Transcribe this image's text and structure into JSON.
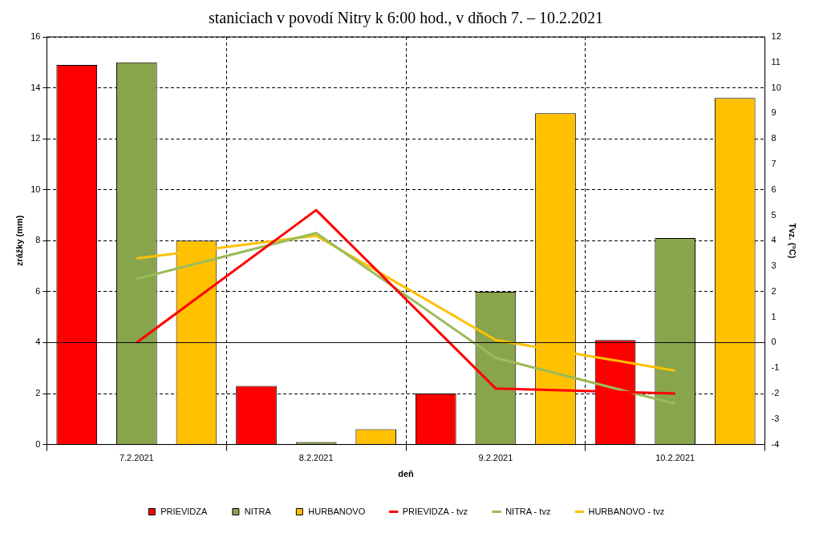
{
  "chart_data": {
    "type": "bar",
    "title": "staniciach v povodí Nitry k 6:00 hod., v dňoch 7. – 10.2.2021",
    "xlabel": "deň",
    "ylabel": "zrážky (mm)",
    "y2label": "Tvz. (°C)",
    "categories": [
      "7.2.2021",
      "8.2.2021",
      "9.2.2021",
      "10.2.2021"
    ],
    "series": [
      {
        "name": "PRIEVIDZA",
        "color": "#ff0000",
        "values": [
          14.9,
          2.3,
          2.0,
          4.1
        ]
      },
      {
        "name": "NITRA",
        "color": "#88a54e",
        "values": [
          15.0,
          0.1,
          6.0,
          8.1
        ]
      },
      {
        "name": "HURBANOVO",
        "color": "#ffc000",
        "values": [
          8.0,
          0.6,
          13.0,
          13.6
        ]
      },
      {
        "name": "PRIEVIDZA - tvz",
        "type": "line",
        "axis": "y2",
        "color": "#ff0000",
        "values": [
          0.0,
          5.2,
          -1.8,
          -2.0
        ]
      },
      {
        "name": "NITRA - tvz",
        "type": "line",
        "axis": "y2",
        "color": "#9bbb59",
        "values": [
          2.5,
          4.3,
          -0.6,
          -2.4
        ]
      },
      {
        "name": "HURBANOVO - tvz",
        "type": "line",
        "axis": "y2",
        "color": "#ffc000",
        "values": [
          3.3,
          4.2,
          0.1,
          -1.1
        ]
      }
    ],
    "ylim": [
      0,
      16
    ],
    "yticks": [
      0,
      2,
      4,
      6,
      8,
      10,
      12,
      14,
      16
    ],
    "y2lim": [
      -4,
      12
    ],
    "y2ticks": [
      -4,
      -3,
      -2,
      -1,
      0,
      1,
      2,
      3,
      4,
      5,
      6,
      7,
      8,
      9,
      10,
      11,
      12
    ],
    "ref_lines": [
      {
        "axis": "y2",
        "value": 0,
        "color": "#000000",
        "line_style": "solid"
      }
    ],
    "grid": true,
    "legend": "bottom",
    "marker": "none",
    "line_style": "solid"
  }
}
